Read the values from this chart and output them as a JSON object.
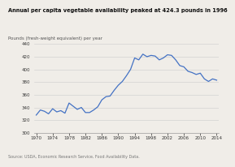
{
  "title": "Annual per capita vegetable availability peaked at 424.3 pounds in 1996",
  "ylabel": "Pounds (fresh-weight equivalent) per year",
  "source": "Source: USDA, Economic Research Service, Food Availability Data.",
  "line_color": "#4472C4",
  "background_color": "#f0ede8",
  "ylim": [
    300,
    440
  ],
  "yticks": [
    300,
    320,
    340,
    360,
    380,
    400,
    420,
    440
  ],
  "xtick_years": [
    1970,
    1974,
    1978,
    1982,
    1986,
    1990,
    1994,
    1998,
    2002,
    2006,
    2010,
    2014
  ],
  "years": [
    1970,
    1971,
    1972,
    1973,
    1974,
    1975,
    1976,
    1977,
    1978,
    1979,
    1980,
    1981,
    1982,
    1983,
    1984,
    1985,
    1986,
    1987,
    1988,
    1989,
    1990,
    1991,
    1992,
    1993,
    1994,
    1995,
    1996,
    1997,
    1998,
    1999,
    2000,
    2001,
    2002,
    2003,
    2004,
    2005,
    2006,
    2007,
    2008,
    2009,
    2010,
    2011,
    2012,
    2013,
    2014
  ],
  "values": [
    328,
    336,
    334,
    330,
    338,
    333,
    335,
    331,
    347,
    342,
    337,
    340,
    332,
    332,
    336,
    341,
    352,
    357,
    358,
    367,
    375,
    381,
    390,
    400,
    418,
    415,
    424,
    420,
    422,
    421,
    415,
    418,
    423,
    422,
    415,
    406,
    404,
    397,
    395,
    392,
    394,
    385,
    381,
    385,
    383
  ]
}
